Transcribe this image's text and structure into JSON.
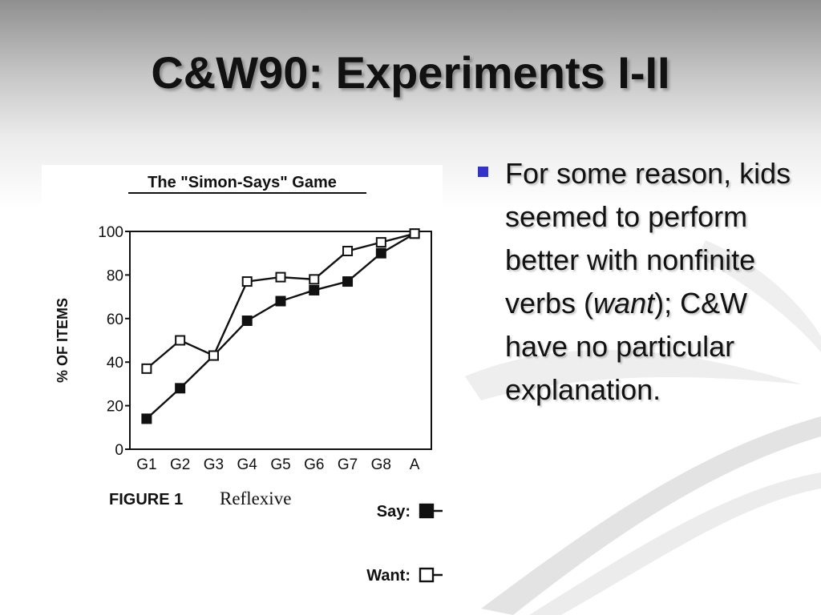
{
  "slide": {
    "title": "C&W90: Experiments I-II"
  },
  "bullet": {
    "text_1": "For some reason, kids seemed to perform better with nonfinite verbs ",
    "paren_open": "(",
    "italic": "want",
    "text_2": "); C&W have no particular explanation."
  },
  "figure": {
    "caption_label": "FIGURE 1",
    "caption_title": "Reflexive"
  },
  "colors": {
    "bullet_marker": "#3333cc",
    "ink": "#111111",
    "swoosh": "#d9d9d9"
  },
  "chart_data": {
    "type": "line",
    "title": "The \"Simon-Says\" Game",
    "xlabel": "",
    "ylabel": "% OF ITEMS",
    "categories": [
      "G1",
      "G2",
      "G3",
      "G4",
      "G5",
      "G6",
      "G7",
      "G8",
      "A"
    ],
    "ylim": [
      0,
      100
    ],
    "yticks": [
      0,
      20,
      40,
      60,
      80,
      100
    ],
    "grid": false,
    "legend_position": "bottom-right",
    "series": [
      {
        "name": "Say:",
        "marker": "filled-square",
        "values": [
          14,
          28,
          43,
          59,
          68,
          73,
          77,
          90,
          99
        ]
      },
      {
        "name": "Want:",
        "marker": "open-square",
        "values": [
          37,
          50,
          43,
          77,
          79,
          78,
          91,
          95,
          99
        ]
      }
    ]
  }
}
